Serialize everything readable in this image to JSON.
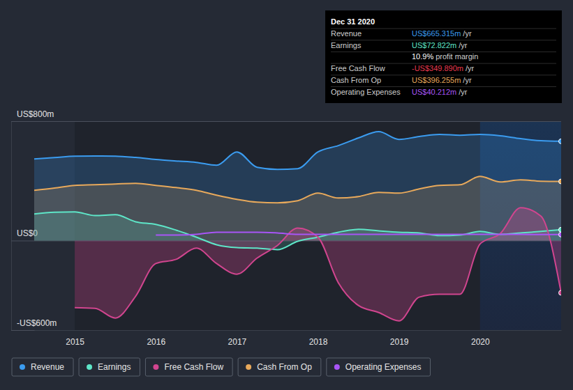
{
  "chart_data": {
    "type": "area",
    "x": [
      2014.5,
      2014.75,
      2015,
      2015.25,
      2015.5,
      2015.75,
      2016,
      2016.25,
      2016.5,
      2016.75,
      2017,
      2017.25,
      2017.5,
      2017.75,
      2018,
      2018.25,
      2018.5,
      2018.75,
      2019,
      2019.25,
      2019.5,
      2019.75,
      2020,
      2020.25,
      2020.5,
      2020.75,
      2021
    ],
    "series": [
      {
        "name": "Revenue",
        "color": "#3b9cf0",
        "values": [
          547,
          556,
          566,
          567,
          566,
          557,
          543,
          533,
          524,
          505,
          594,
          491,
          477,
          482,
          594,
          636,
          688,
          730,
          678,
          697,
          711,
          706,
          711,
          702,
          683,
          669,
          665.3
        ]
      },
      {
        "name": "Earnings",
        "color": "#5ee6c8",
        "values": [
          178,
          190,
          192,
          168,
          173,
          126,
          108,
          70,
          23,
          -28,
          -47,
          -51,
          -61,
          -5,
          23,
          56,
          75,
          65,
          56,
          51,
          33,
          37,
          61,
          42,
          51,
          61,
          72.8
        ]
      },
      {
        "name": "Free Cash Flow",
        "color": "#d1458f",
        "values": [
          null,
          null,
          -449,
          -454,
          -519,
          -374,
          -154,
          -126,
          -51,
          -154,
          -225,
          -117,
          -33,
          84,
          23,
          -281,
          -435,
          -482,
          -538,
          -379,
          -360,
          -360,
          -23,
          47,
          220,
          164,
          -349.9
        ]
      },
      {
        "name": "Cash From Op",
        "color": "#e8a95b",
        "values": [
          337,
          352,
          370,
          374,
          379,
          384,
          370,
          355,
          337,
          304,
          276,
          257,
          253,
          267,
          318,
          285,
          295,
          323,
          318,
          346,
          370,
          374,
          430,
          393,
          407,
          398,
          396.3
        ]
      },
      {
        "name": "Operating Expenses",
        "color": "#a855f7",
        "type": "line",
        "values": [
          null,
          null,
          null,
          null,
          null,
          null,
          37,
          37,
          42,
          56,
          56,
          56,
          51,
          42,
          42,
          42,
          42,
          42,
          42,
          42,
          42,
          42,
          42,
          42,
          42,
          40,
          40.2
        ]
      }
    ],
    "xlim": [
      2014.5,
      2021
    ],
    "xticks": [
      2015,
      2016,
      2017,
      2018,
      2019,
      2020
    ],
    "ylim": [
      -600,
      800
    ],
    "yticks": [
      {
        "value": -600,
        "label": "-US$600m"
      },
      {
        "value": 0,
        "label": "US$0"
      },
      {
        "value": 800,
        "label": "US$800m"
      }
    ],
    "grid": true,
    "legend": "bottom",
    "annotations": {
      "title": "Dec 31 2020",
      "rows": [
        {
          "label": "Revenue",
          "value": "US$665.315m",
          "unit": "/yr",
          "color": "#3b9cf0"
        },
        {
          "label": "Earnings",
          "value": "US$72.822m",
          "unit": "/yr",
          "color": "#5ee6c8"
        },
        {
          "value": "10.9%",
          "unit": "profit margin",
          "color": "#ffffff"
        },
        {
          "label": "Free Cash Flow",
          "value": "-US$349.890m",
          "unit": "/yr",
          "color": "#e8394e"
        },
        {
          "label": "Cash From Op",
          "value": "US$396.255m",
          "unit": "/yr",
          "color": "#e8a95b"
        },
        {
          "label": "Operating Expenses",
          "value": "US$40.212m",
          "unit": "/yr",
          "color": "#a855f7"
        }
      ]
    }
  }
}
